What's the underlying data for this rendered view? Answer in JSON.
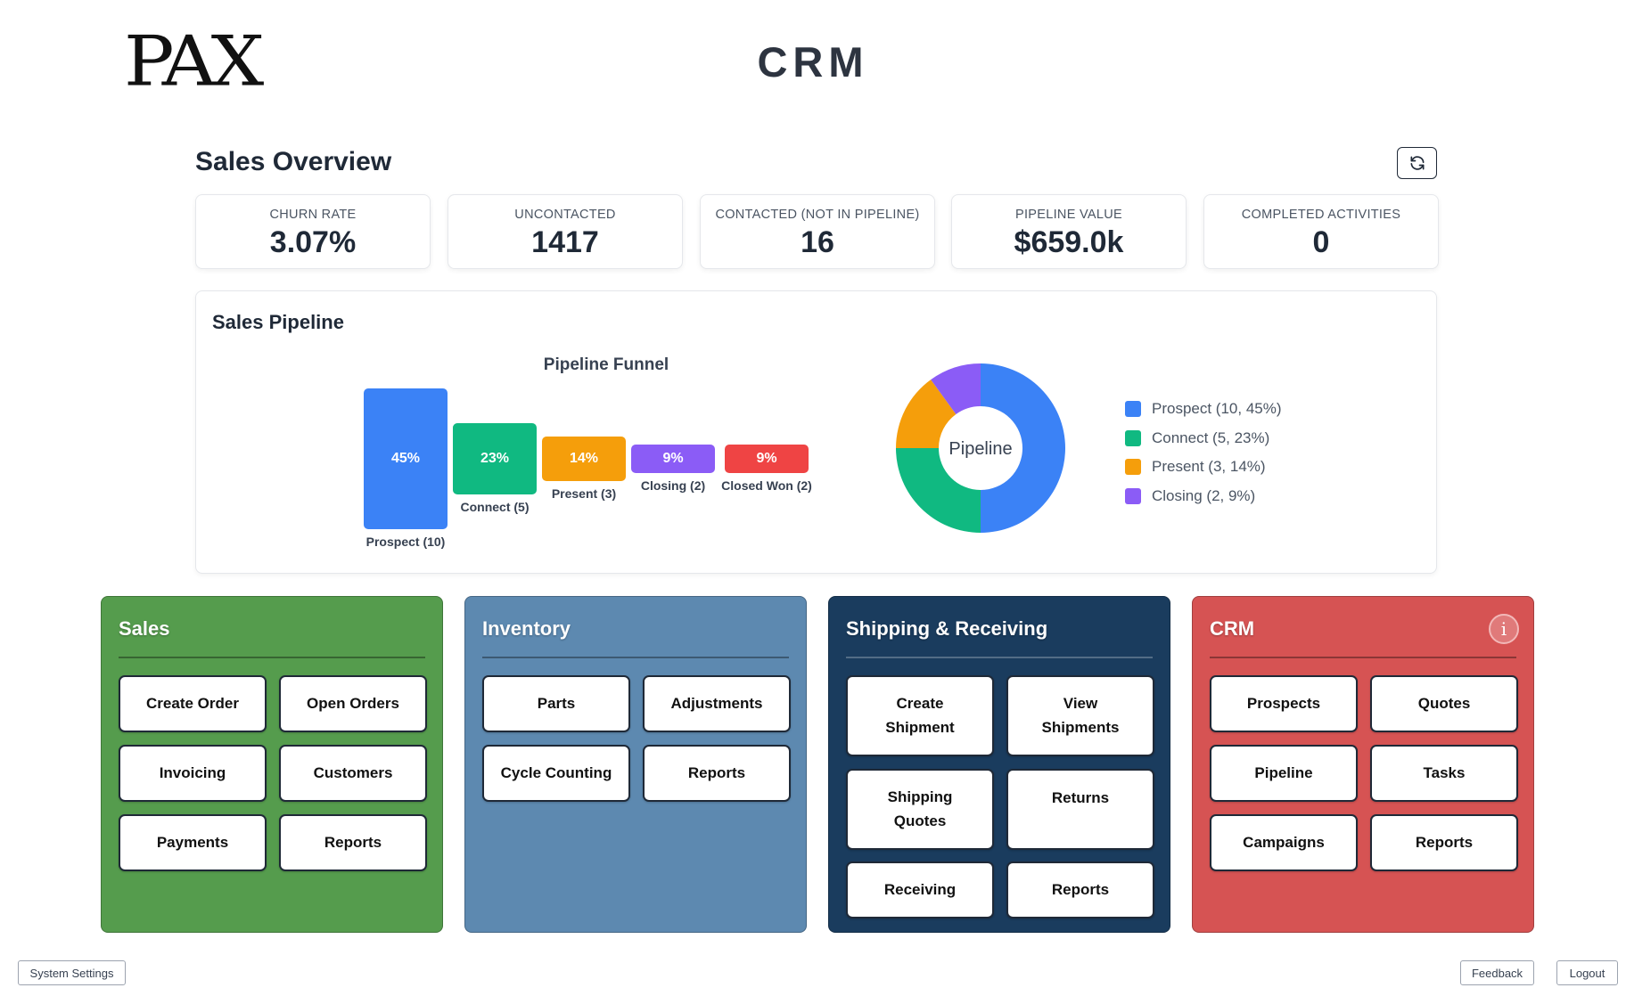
{
  "header": {
    "logo_text": "PAX",
    "title": "CRM"
  },
  "overview": {
    "title": "Sales Overview",
    "refresh_icon": "refresh-icon",
    "stats": [
      {
        "label": "CHURN RATE",
        "value": "3.07%"
      },
      {
        "label": "UNCONTACTED",
        "value": "1417"
      },
      {
        "label": "CONTACTED (NOT IN PIPELINE)",
        "value": "16"
      },
      {
        "label": "PIPELINE VALUE",
        "value": "$659.0k"
      },
      {
        "label": "COMPLETED ACTIVITIES",
        "value": "0"
      }
    ]
  },
  "pipeline": {
    "title": "Sales Pipeline",
    "funnel_title": "Pipeline Funnel",
    "donut_center_label": "Pipeline",
    "stages": [
      {
        "label": "Prospect (10)",
        "percent": "45%",
        "color": "#3b82f6"
      },
      {
        "label": "Connect (5)",
        "percent": "23%",
        "color": "#10b981"
      },
      {
        "label": "Present (3)",
        "percent": "14%",
        "color": "#f59e0b"
      },
      {
        "label": "Closing (2)",
        "percent": "9%",
        "color": "#8b5cf6"
      },
      {
        "label": "Closed Won (2)",
        "percent": "9%",
        "color": "#ef4444"
      }
    ],
    "legend": [
      {
        "label": "Prospect (10, 45%)",
        "color": "#3b82f6"
      },
      {
        "label": "Connect (5, 23%)",
        "color": "#10b981"
      },
      {
        "label": "Present (3, 14%)",
        "color": "#f59e0b"
      },
      {
        "label": "Closing (2, 9%)",
        "color": "#8b5cf6"
      }
    ]
  },
  "chart_data": {
    "type": "bar",
    "title": "Pipeline Funnel",
    "categories": [
      "Prospect (10)",
      "Connect (5)",
      "Present (3)",
      "Closing (2)",
      "Closed Won (2)"
    ],
    "values": [
      45,
      23,
      14,
      9,
      9
    ],
    "counts": [
      10,
      5,
      3,
      2,
      2
    ],
    "donut": {
      "type": "pie",
      "center_label": "Pipeline",
      "slices": [
        {
          "name": "Prospect",
          "count": 10,
          "percent": 45
        },
        {
          "name": "Connect",
          "count": 5,
          "percent": 23
        },
        {
          "name": "Present",
          "count": 3,
          "percent": 14
        },
        {
          "name": "Closing",
          "count": 2,
          "percent": 9
        }
      ],
      "legend_position": "right"
    }
  },
  "modules": {
    "sales": {
      "title": "Sales",
      "color": "#559c4d",
      "buttons": [
        "Create Order",
        "Open Orders",
        "Invoicing",
        "Customers",
        "Payments",
        "Reports"
      ]
    },
    "inventory": {
      "title": "Inventory",
      "color": "#5d89b0",
      "buttons": [
        "Parts",
        "Adjustments",
        "Cycle Counting",
        "Reports"
      ]
    },
    "shipping": {
      "title": "Shipping & Receiving",
      "color": "#1a3c5e",
      "buttons": [
        "Create\nShipment",
        "View\nShipments",
        "Shipping\nQuotes",
        "Returns",
        "Receiving",
        "Reports"
      ]
    },
    "crm": {
      "title": "CRM",
      "color": "#d65353",
      "info_icon": "info-icon",
      "buttons": [
        "Prospects",
        "Quotes",
        "Pipeline",
        "Tasks",
        "Campaigns",
        "Reports"
      ]
    }
  },
  "footer": {
    "settings_label": "System Settings",
    "feedback_label": "Feedback",
    "logout_label": "Logout"
  }
}
